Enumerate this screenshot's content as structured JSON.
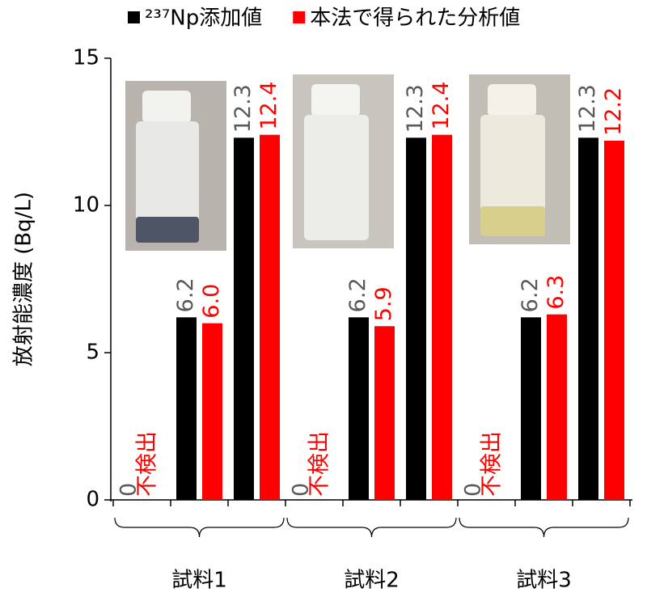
{
  "chart_data": {
    "type": "bar",
    "y_label": "放射能濃度 (Bq/L)",
    "categories": [
      null,
      null,
      null,
      null,
      null,
      null,
      null,
      null,
      null
    ],
    "groups": [
      "試料1",
      "試料2",
      "試料3"
    ],
    "series": [
      {
        "name": "²³⁷Np添加値",
        "color": "#000000",
        "label_color": "#595959",
        "values": [
          0,
          6.2,
          12.3,
          0,
          6.2,
          12.3,
          0,
          6.2,
          12.3
        ]
      },
      {
        "name": "本法で得られた分析値",
        "color": "#ff0000",
        "label_color": "#ff0000",
        "values": [
          null,
          6.0,
          12.4,
          null,
          5.9,
          12.4,
          null,
          6.3,
          12.2
        ],
        "value_labels": [
          "不検出",
          "6.0",
          "12.4",
          "不検出",
          "5.9",
          "12.4",
          "不検出",
          "6.3",
          "12.2"
        ]
      }
    ],
    "ylim": [
      0,
      15
    ],
    "yticks": [
      0,
      5,
      10,
      15
    ],
    "grid": false
  }
}
